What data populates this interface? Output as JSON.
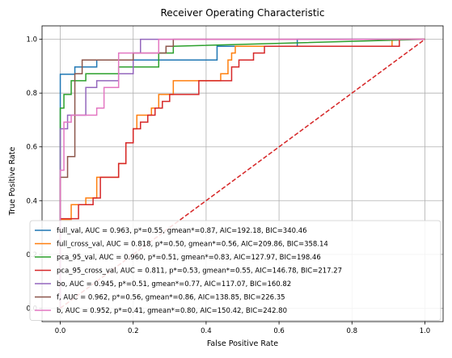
{
  "chart_data": {
    "type": "line",
    "title": "Receiver Operating Characteristic",
    "xlabel": "False Positive Rate",
    "ylabel": "True Positive Rate",
    "xlim": [
      -0.05,
      1.05
    ],
    "ylim": [
      -0.05,
      1.05
    ],
    "xticks": [
      0.0,
      0.2,
      0.4,
      0.6,
      0.8,
      1.0
    ],
    "yticks": [
      0.0,
      0.2,
      0.4,
      0.6,
      0.8,
      1.0
    ],
    "xtick_labels": [
      "0.0",
      "0.2",
      "0.4",
      "0.6",
      "0.8",
      "1.0"
    ],
    "ytick_labels": [
      "0.0",
      "0.2",
      "0.4",
      "0.6",
      "0.8",
      "1.0"
    ],
    "grid": true,
    "legend_position": "lower-right",
    "chance_line": {
      "x": [
        0,
        1
      ],
      "y": [
        0,
        1
      ],
      "color": "#d62728",
      "style": "dashed"
    },
    "series": [
      {
        "name": "full_val, AUC = 0.963, p*=0.55, gmean*=0.87, AIC=192.18, BIC=340.46",
        "color": "#1f77b4",
        "x": [
          0,
          0,
          0.04,
          0.04,
          0.1,
          0.1,
          0.43,
          0.43,
          0.65,
          0.65,
          1.0
        ],
        "y": [
          0,
          0.87,
          0.87,
          0.897,
          0.897,
          0.923,
          0.923,
          0.974,
          0.974,
          1.0,
          1.0
        ]
      },
      {
        "name": "full_cross_val, AUC = 0.818, p*=0.50, gmean*=0.56, AIC=209.86, BIC=358.14",
        "color": "#ff7f0e",
        "x": [
          0,
          0,
          0.03,
          0.03,
          0.07,
          0.07,
          0.1,
          0.1,
          0.12,
          0.12,
          0.16,
          0.16,
          0.18,
          0.18,
          0.2,
          0.2,
          0.21,
          0.21,
          0.23,
          0.23,
          0.25,
          0.25,
          0.27,
          0.27,
          0.31,
          0.31,
          0.38,
          0.38,
          0.44,
          0.44,
          0.46,
          0.46,
          0.47,
          0.47,
          0.48,
          0.48,
          0.5,
          0.5,
          0.91,
          0.91,
          1.0
        ],
        "y": [
          0,
          0.33,
          0.33,
          0.385,
          0.385,
          0.41,
          0.41,
          0.487,
          0.487,
          0.487,
          0.487,
          0.538,
          0.538,
          0.615,
          0.615,
          0.667,
          0.667,
          0.718,
          0.718,
          0.718,
          0.718,
          0.744,
          0.744,
          0.795,
          0.795,
          0.846,
          0.846,
          0.846,
          0.846,
          0.872,
          0.872,
          0.923,
          0.923,
          0.949,
          0.949,
          0.974,
          0.974,
          0.974,
          0.974,
          1.0,
          1.0
        ]
      },
      {
        "name": "pca_95_val, AUC = 0.960, p*=0.51, gmean*=0.83, AIC=127.97, BIC=198.46",
        "color": "#2ca02c",
        "x": [
          0,
          0,
          0.01,
          0.01,
          0.03,
          0.03,
          0.07,
          0.07,
          0.16,
          0.16,
          0.27,
          0.27,
          0.31,
          0.31,
          1.0
        ],
        "y": [
          0,
          0.744,
          0.744,
          0.795,
          0.795,
          0.846,
          0.846,
          0.872,
          0.872,
          0.897,
          0.897,
          0.949,
          0.949,
          0.974,
          1.0
        ]
      },
      {
        "name": "pca_95_cross_val, AUC = 0.811, p*=0.53, gmean*=0.55, AIC=146.78, BIC=217.27",
        "color": "#d62728",
        "x": [
          0,
          0,
          0.05,
          0.05,
          0.09,
          0.09,
          0.11,
          0.11,
          0.14,
          0.14,
          0.16,
          0.16,
          0.18,
          0.18,
          0.2,
          0.2,
          0.22,
          0.22,
          0.24,
          0.24,
          0.26,
          0.26,
          0.28,
          0.28,
          0.3,
          0.3,
          0.34,
          0.34,
          0.38,
          0.38,
          0.43,
          0.43,
          0.45,
          0.45,
          0.47,
          0.47,
          0.49,
          0.49,
          0.53,
          0.53,
          0.56,
          0.56,
          0.93,
          0.93,
          1.0
        ],
        "y": [
          0,
          0.333,
          0.333,
          0.385,
          0.385,
          0.41,
          0.41,
          0.487,
          0.487,
          0.487,
          0.487,
          0.538,
          0.538,
          0.615,
          0.615,
          0.667,
          0.667,
          0.692,
          0.692,
          0.718,
          0.718,
          0.744,
          0.744,
          0.769,
          0.769,
          0.795,
          0.795,
          0.795,
          0.795,
          0.846,
          0.846,
          0.846,
          0.846,
          0.846,
          0.846,
          0.897,
          0.897,
          0.923,
          0.923,
          0.949,
          0.949,
          0.974,
          0.974,
          1.0,
          1.0
        ]
      },
      {
        "name": "bo, AUC = 0.945, p*=0.51, gmean*=0.77, AIC=117.07, BIC=160.82",
        "color": "#9467bd",
        "x": [
          0,
          0,
          0.02,
          0.02,
          0.07,
          0.07,
          0.1,
          0.1,
          0.16,
          0.16,
          0.2,
          0.2,
          0.22,
          0.22,
          1.0
        ],
        "y": [
          0,
          0.667,
          0.667,
          0.718,
          0.718,
          0.821,
          0.821,
          0.846,
          0.846,
          0.872,
          0.872,
          0.949,
          0.949,
          1.0,
          1.0
        ]
      },
      {
        "name": "f, AUC = 0.962, p*=0.56, gmean*=0.86, AIC=138.85, BIC=226.35",
        "color": "#8c564b",
        "x": [
          0,
          0,
          0.02,
          0.02,
          0.04,
          0.04,
          0.06,
          0.06,
          0.2,
          0.2,
          0.29,
          0.29,
          0.31,
          0.31,
          0.93,
          0.93,
          1.0
        ],
        "y": [
          0,
          0.487,
          0.487,
          0.564,
          0.564,
          0.872,
          0.872,
          0.923,
          0.923,
          0.949,
          0.949,
          0.974,
          0.974,
          1.0,
          1.0,
          1.0,
          1.0
        ]
      },
      {
        "name": "b, AUC = 0.952, p*=0.41, gmean*=0.80, AIC=150.42, BIC=242.80",
        "color": "#e377c2",
        "x": [
          0,
          0,
          0.01,
          0.01,
          0.03,
          0.03,
          0.06,
          0.06,
          0.1,
          0.1,
          0.12,
          0.12,
          0.16,
          0.16,
          0.27,
          0.27,
          1.0
        ],
        "y": [
          0,
          0.513,
          0.513,
          0.692,
          0.692,
          0.718,
          0.718,
          0.718,
          0.718,
          0.744,
          0.744,
          0.821,
          0.821,
          0.949,
          0.949,
          1.0,
          1.0
        ]
      }
    ]
  }
}
